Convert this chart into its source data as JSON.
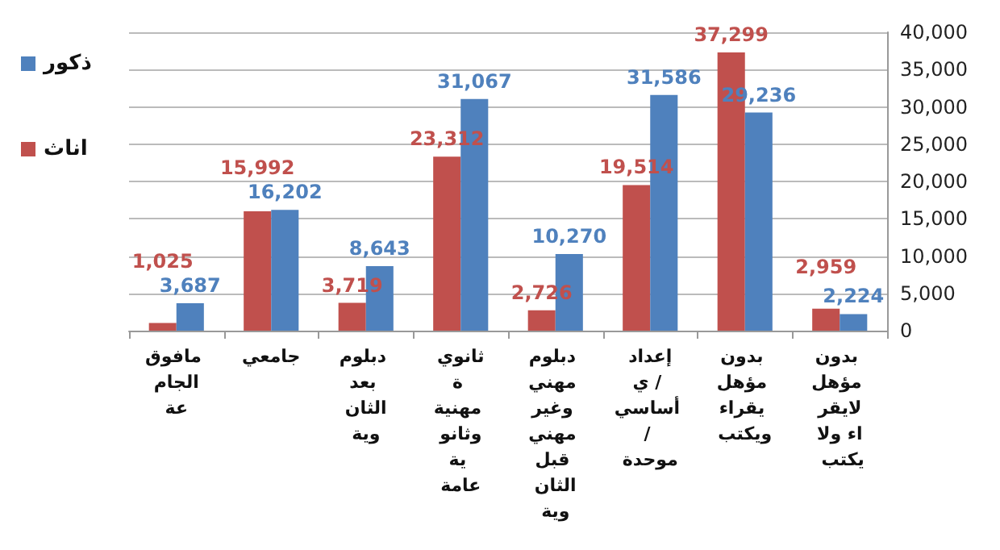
{
  "chart_data": {
    "type": "bar",
    "categories": [
      "مافوق الجامعة",
      "جامعي",
      "دبلوم بعد الثانوية",
      "ثانوية مهنية وثانوية عامة",
      "دبلوم مهني وغير مهني قبل الثانوية",
      "إعدادي / أساسي / موحدة",
      "بدون مؤهل يقراء ويكتب",
      "بدون مؤهل لايقراء ولا يكتب"
    ],
    "series": [
      {
        "name": "اناث",
        "color": "#c0504d",
        "values": [
          1025,
          15992,
          3719,
          23312,
          2726,
          19514,
          37299,
          2959
        ],
        "value_labels": [
          "1,025",
          "15,992",
          "3,719",
          "23,312",
          "2,726",
          "19,514",
          "37,299",
          "2,959"
        ]
      },
      {
        "name": "ذكور",
        "color": "#4f81bd",
        "values": [
          3687,
          16202,
          8643,
          31067,
          10270,
          31586,
          29236,
          2224
        ],
        "value_labels": [
          "3,687",
          "16,202",
          "8,643",
          "31,067",
          "10,270",
          "31,586",
          "29,236",
          "2,224"
        ]
      }
    ],
    "ylim": [
      0,
      40000
    ],
    "yticks": [
      0,
      {
        "value": 5000,
        "label": "5,000"
      },
      {
        "value": 10000,
        "label": "10,000"
      },
      {
        "value": 15000,
        "label": "15,000"
      },
      {
        "value": 20000,
        "label": "20,000"
      },
      {
        "value": 25000,
        "label": "25,000"
      },
      {
        "value": 30000,
        "label": "30,000"
      },
      {
        "value": 35000,
        "label": "35,000"
      },
      {
        "value": 40000,
        "label": "40,000"
      }
    ],
    "grid": "y",
    "legend": "left"
  }
}
